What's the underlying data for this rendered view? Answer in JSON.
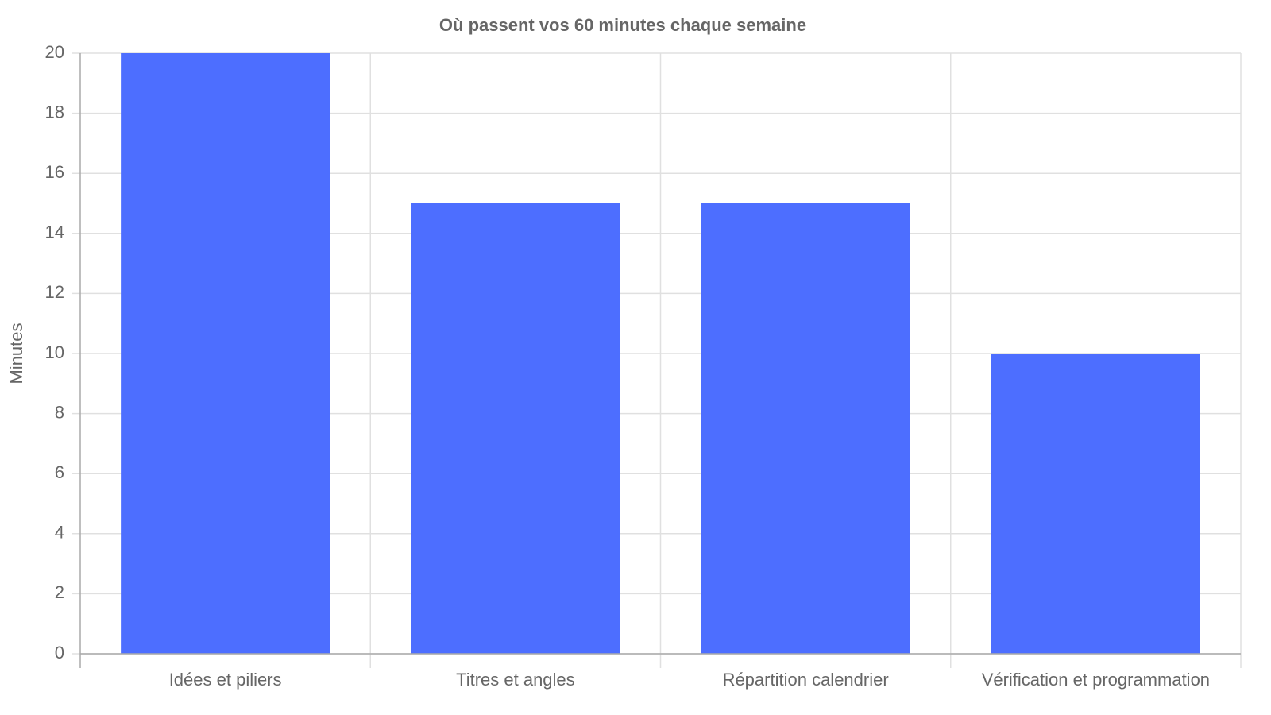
{
  "chart_data": {
    "type": "bar",
    "title": "Où passent vos 60 minutes chaque semaine",
    "y_label": "Minutes",
    "categories": [
      "Idées et piliers",
      "Titres et angles",
      "Répartition calendrier",
      "Vérification et programmation"
    ],
    "values": [
      20,
      15,
      15,
      10
    ],
    "color": "#4d6eff",
    "ylim": [
      0,
      20
    ],
    "yticks": [
      0,
      2,
      4,
      6,
      8,
      10,
      12,
      14,
      16,
      18,
      20
    ],
    "grid": true
  }
}
